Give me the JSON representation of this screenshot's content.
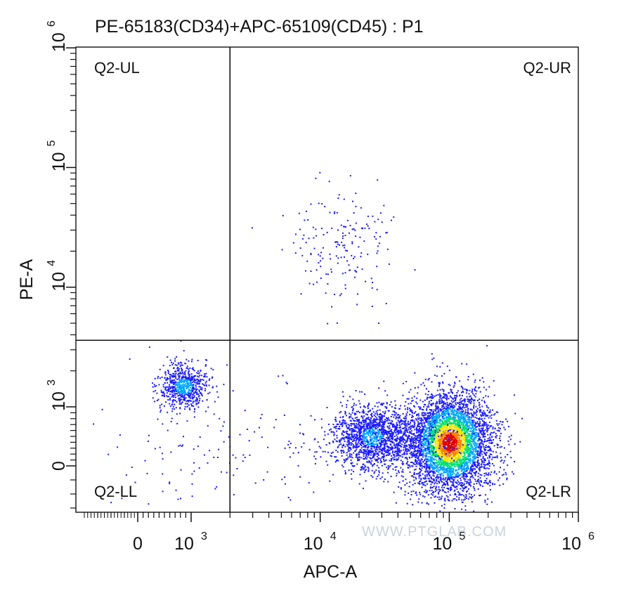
{
  "chart_data": {
    "type": "scatter",
    "title": "PE-65183(CD34)+APC-65109(CD45) : P1",
    "xlabel": "APC-A",
    "ylabel": "PE-A",
    "x_scale": "biexponential",
    "y_scale": "biexponential",
    "xlim": [
      -400,
      1000000
    ],
    "ylim": [
      -300,
      1000000
    ],
    "x_ticks": [
      {
        "value": 0,
        "base": "0",
        "exp": ""
      },
      {
        "value": 1000,
        "base": "10",
        "exp": "3"
      },
      {
        "value": 10000,
        "base": "10",
        "exp": "4"
      },
      {
        "value": 100000,
        "base": "10",
        "exp": "5"
      },
      {
        "value": 1000000,
        "base": "10",
        "exp": "6"
      }
    ],
    "y_ticks": [
      {
        "value": 0,
        "base": "0",
        "exp": ""
      },
      {
        "value": 1000,
        "base": "10",
        "exp": "3"
      },
      {
        "value": 10000,
        "base": "10",
        "exp": "4"
      },
      {
        "value": 100000,
        "base": "10",
        "exp": "5"
      },
      {
        "value": 1000000,
        "base": "10",
        "exp": "6"
      }
    ],
    "quadrant_gate": {
      "x_threshold": 2000,
      "y_threshold": 3600,
      "labels": {
        "ul": "Q2-UL",
        "ur": "Q2-UR",
        "ll": "Q2-LL",
        "lr": "Q2-LR"
      }
    },
    "populations": [
      {
        "center_x": 850,
        "center_y": 1500,
        "spread": "moderate",
        "density": "low",
        "quadrant": "LL"
      },
      {
        "center_x": 25000,
        "center_y": 500,
        "spread": "moderate",
        "density": "medium",
        "quadrant": "LR"
      },
      {
        "center_x": 100000,
        "center_y": 400,
        "spread": "wide",
        "density": "high",
        "quadrant": "LR"
      },
      {
        "center_x": 14000,
        "center_y": 25000,
        "spread": "wide",
        "density": "sparse",
        "quadrant": "UR"
      }
    ],
    "density_colors": [
      "#1a1aff",
      "#00a6ff",
      "#00e070",
      "#f0e600",
      "#ff8000",
      "#e00000"
    ],
    "grid": false,
    "legend": "none"
  },
  "watermark": "WWW.PTGLAB.COM"
}
